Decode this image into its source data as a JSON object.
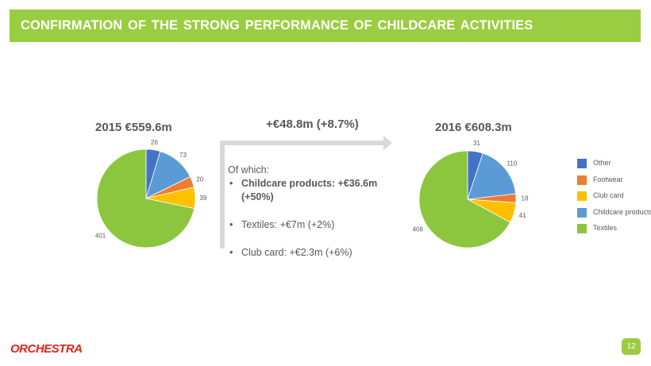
{
  "banner": {
    "title": "CONFIRMATION  OF THE STRONG  PERFORMANCE  OF CHILDCARE  ACTIVITIES"
  },
  "chart_data": [
    {
      "type": "pie",
      "title": "2015 €559.6m",
      "categories": [
        "Other",
        "Childcare products",
        "Footwear",
        "Club card",
        "Textiles"
      ],
      "values": [
        26,
        73,
        20,
        39,
        401
      ],
      "colors": [
        "#4472c4",
        "#5b9bd5",
        "#ed7d31",
        "#ffc000",
        "#8cc63f"
      ]
    },
    {
      "type": "pie",
      "title": "2016 €608.3m",
      "categories": [
        "Other",
        "Childcare products",
        "Footwear",
        "Club card",
        "Textiles"
      ],
      "values": [
        31,
        110,
        18,
        41,
        408
      ],
      "colors": [
        "#4472c4",
        "#5b9bd5",
        "#ed7d31",
        "#ffc000",
        "#8cc63f"
      ]
    }
  ],
  "change": {
    "delta": "+€48.8m (+8.7%)",
    "intro": "Of which:",
    "items": [
      {
        "bullet": "•",
        "text": "Childcare products: +€36.6m (+50%)"
      },
      {
        "bullet": "•",
        "text": "Textiles: +€7m (+2%)"
      },
      {
        "bullet": "•",
        "text": "Club card: +€2.3m (+6%)"
      }
    ]
  },
  "legend": [
    {
      "label": "Other",
      "color": "#4472c4"
    },
    {
      "label": "Footwear",
      "color": "#ed7d31"
    },
    {
      "label": "Club card",
      "color": "#ffc000"
    },
    {
      "label": "Childcare products",
      "color": "#5b9bd5"
    },
    {
      "label": "Textiles",
      "color": "#8cc63f"
    }
  ],
  "footer": {
    "logo": "ORCHESTRA",
    "page_number": "12"
  }
}
